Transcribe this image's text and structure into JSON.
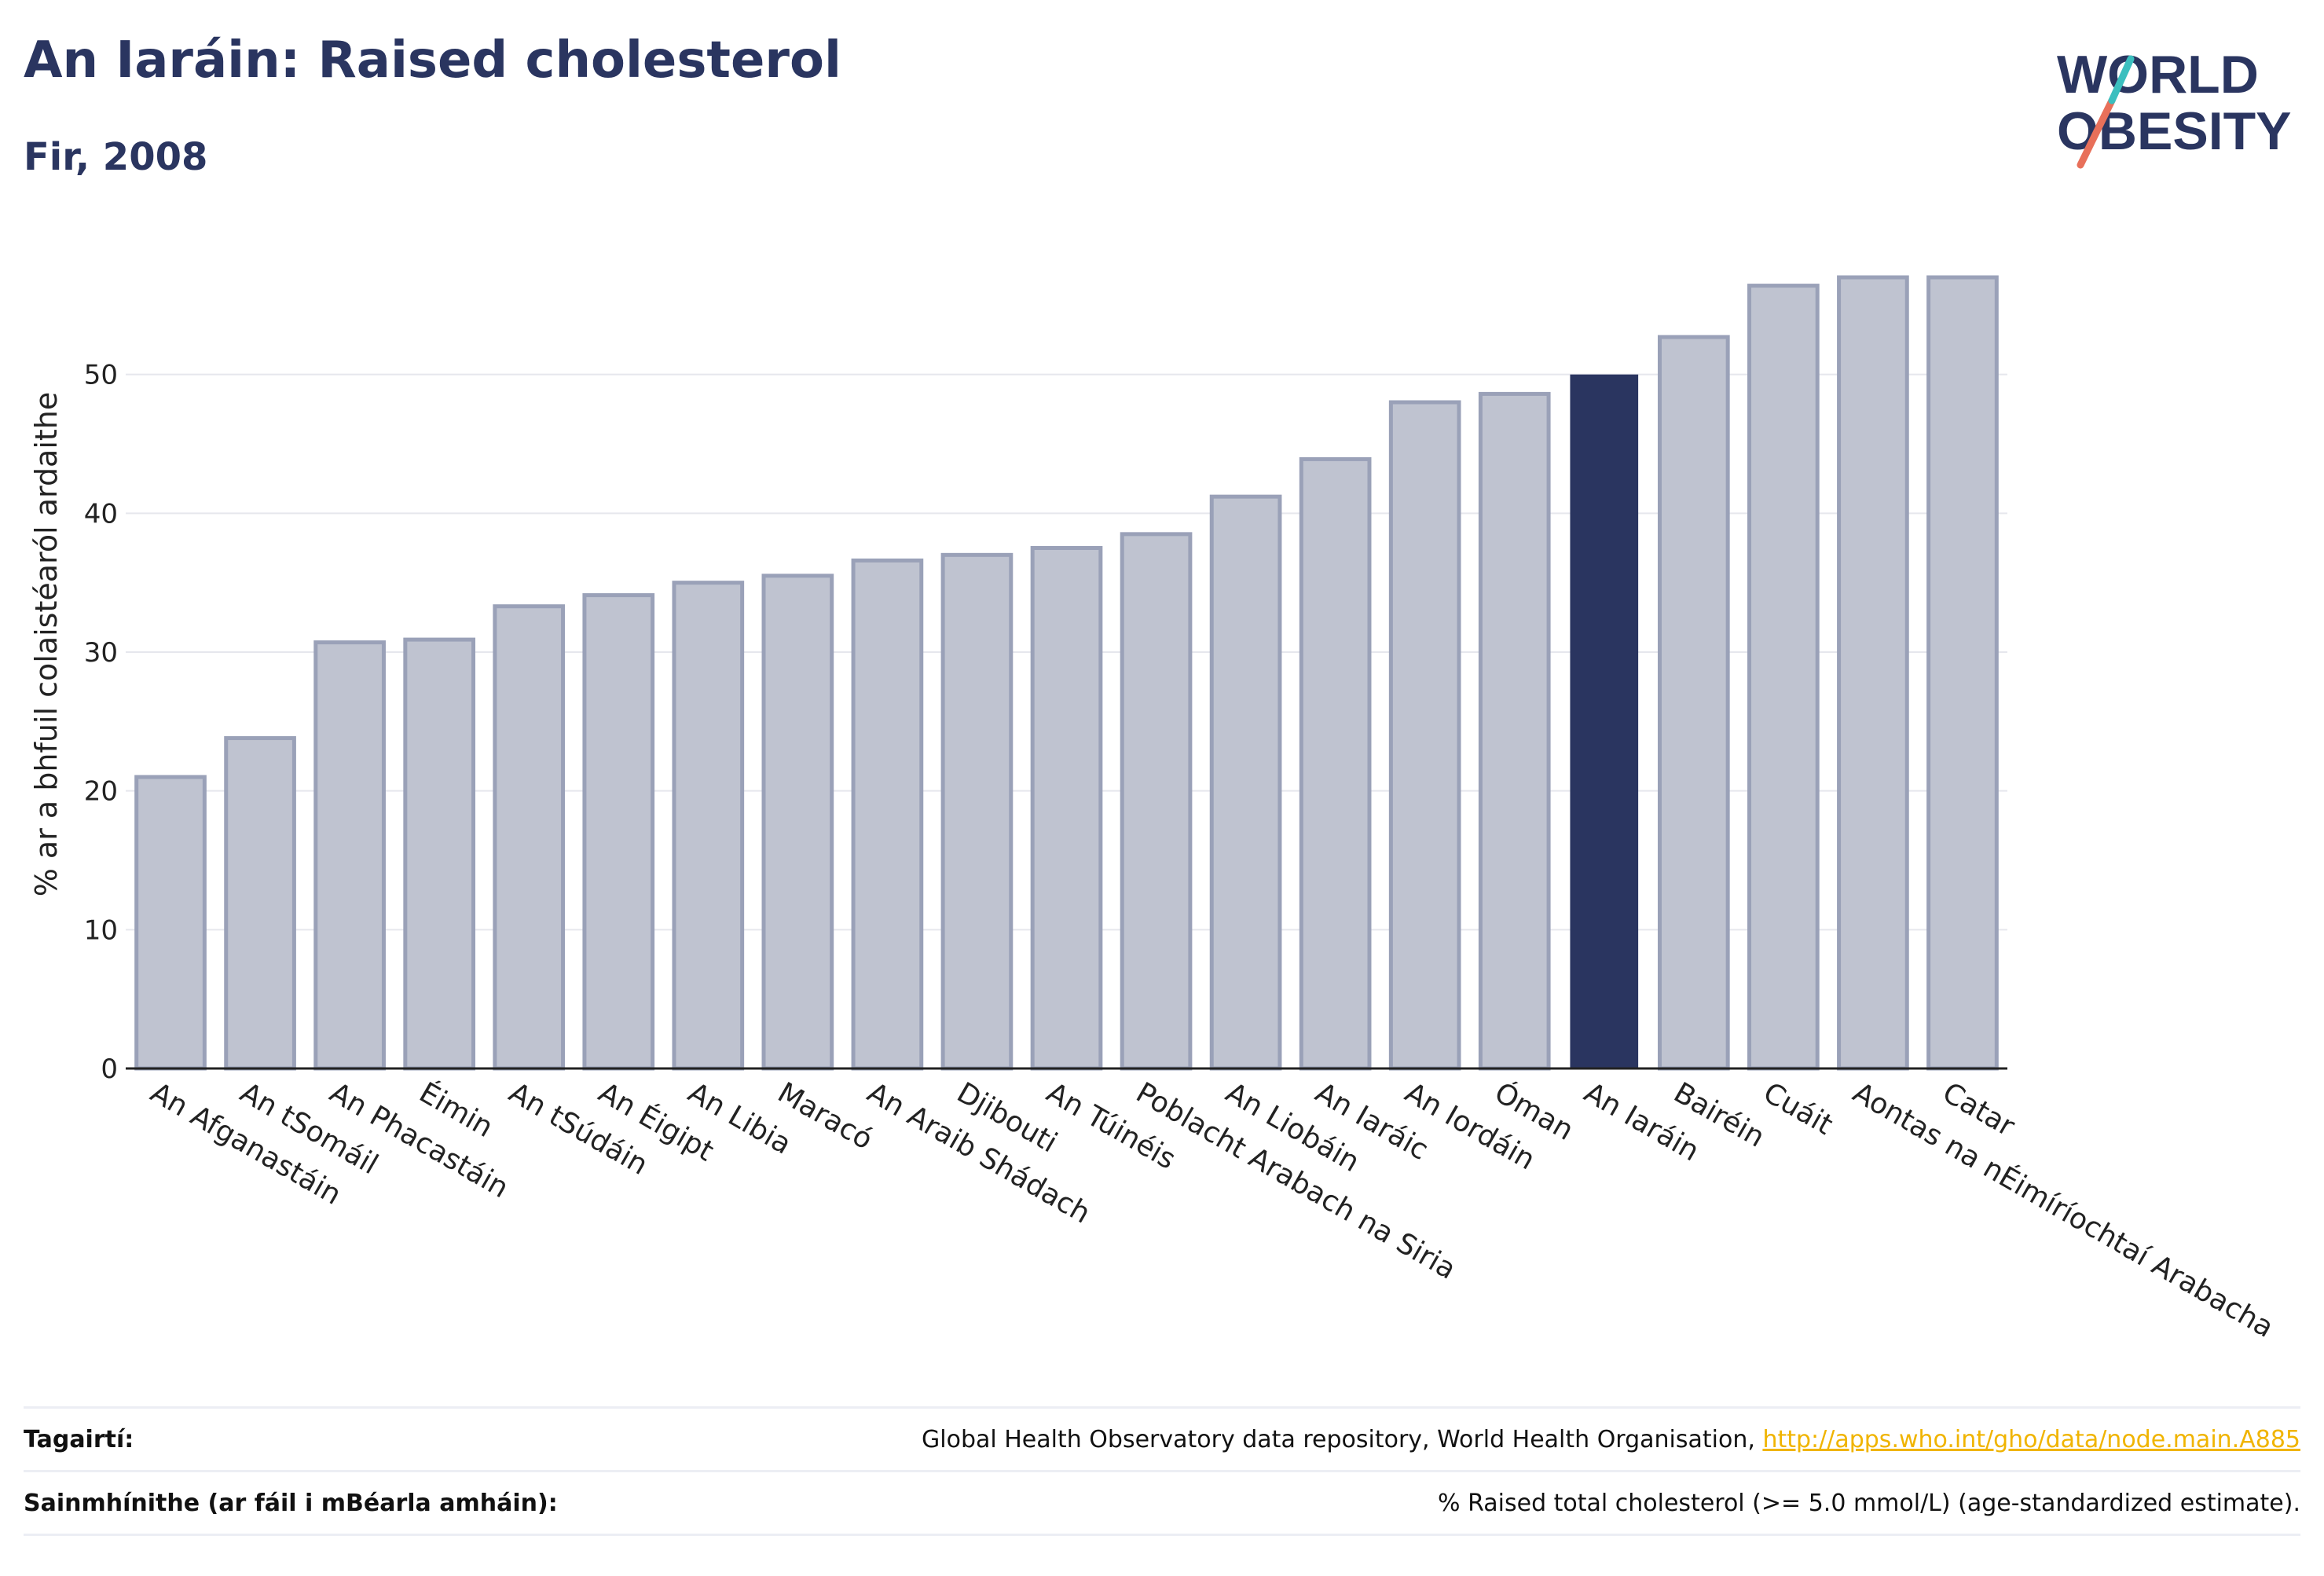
{
  "header": {
    "title": "An Iaráin: Raised cholesterol",
    "subtitle": "Fir, 2008"
  },
  "logo": {
    "line1": "WORLD",
    "line2": "OBESITY",
    "colors": {
      "text": "#2a3560",
      "slash_top": "#3bbfbf",
      "slash_bottom": "#e8705a"
    }
  },
  "colors": {
    "bar": "#bfc3d0",
    "bar_border": "#9aa1b8",
    "highlight": "#2a3560",
    "grid": "#e6e7ed",
    "axis": "#222222"
  },
  "chart_data": {
    "type": "bar",
    "title": "",
    "xlabel": "",
    "ylabel": "% ar a bhfuil colaistéaról ardaithe",
    "ylim": [
      0,
      60
    ],
    "yticks": [
      0,
      10,
      20,
      30,
      40,
      50
    ],
    "grid": true,
    "highlight_category": "An Iaráin",
    "categories": [
      "An Afganastáin",
      "An tSomáil",
      "An Phacastáin",
      "Éimin",
      "An tSúdáin",
      "An Éigipt",
      "An Libia",
      "Maracó",
      "An Araib Shádach",
      "Djibouti",
      "An Túinéis",
      "Poblacht Arabach na Siria",
      "An Liobáin",
      "An Iaráic",
      "An Iordáin",
      "Óman",
      "An Iaráin",
      "Bairéin",
      "Cuáit",
      "Aontas na nÉimíríochtaí Arabacha",
      "Catar"
    ],
    "values": [
      21.0,
      23.8,
      30.7,
      30.9,
      33.3,
      34.1,
      35.0,
      35.5,
      36.6,
      37.0,
      37.5,
      38.5,
      41.2,
      43.9,
      48.0,
      48.6,
      50.0,
      52.7,
      56.4,
      57.0,
      57.0
    ]
  },
  "footer": {
    "references_label": "Tagairtí:",
    "references_text": "Global Health Observatory data repository, World Health Organisation, ",
    "references_link": "http://apps.who.int/gho/data/node.main.A885",
    "definitions_label": "Sainmhínithe (ar fáil i mBéarla amháin):",
    "definitions_text": "% Raised total cholesterol (>= 5.0 mmol/L) (age-standardized estimate)."
  }
}
